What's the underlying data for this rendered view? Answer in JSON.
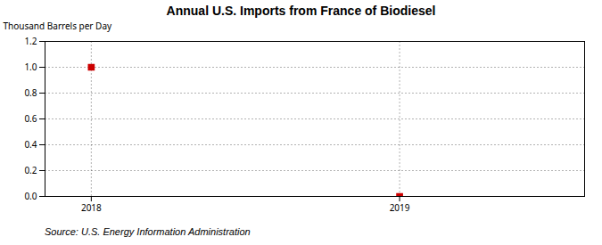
{
  "chart_data": {
    "type": "scatter",
    "title": "Annual U.S. Imports from France of Biodiesel",
    "ylabel": "Thousand Barrels per Day",
    "source": "Source: U.S. Energy Information Administration",
    "x": [
      2018,
      2019
    ],
    "values": [
      1.0,
      0.0
    ],
    "color": "#CC0000",
    "marker": "square",
    "xlim": [
      2017.85,
      2019.6
    ],
    "xticks": [
      2018,
      2019
    ],
    "ylim": [
      0.0,
      1.2
    ],
    "yticks": [
      {
        "value": 0.0,
        "label": "0.0"
      },
      0.2,
      0.4,
      0.6,
      0.8,
      {
        "value": 1.0,
        "label": "1.0"
      },
      1.2
    ],
    "grid": true
  }
}
